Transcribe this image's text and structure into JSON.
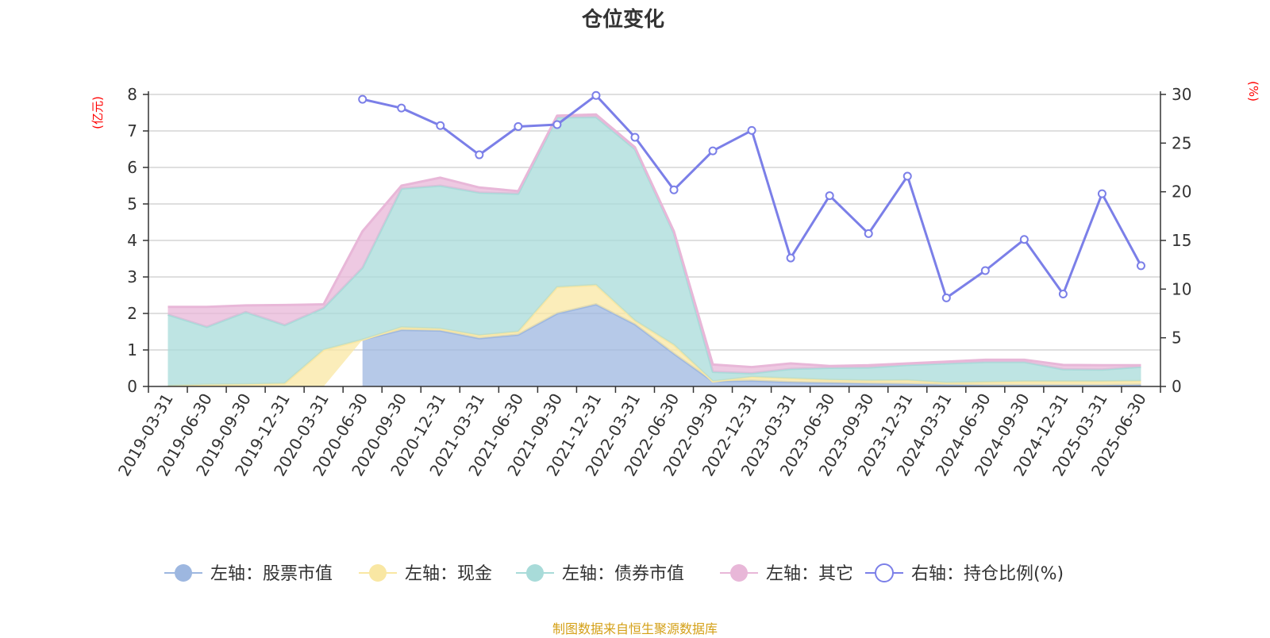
{
  "chart_data": {
    "type": "area",
    "title": "仓位变化",
    "left_axis_unit": "(亿元)",
    "right_axis_unit": "(%)",
    "categories": [
      "2019-03-31",
      "2019-06-30",
      "2019-09-30",
      "2019-12-31",
      "2020-03-31",
      "2020-06-30",
      "2020-09-30",
      "2020-12-31",
      "2021-03-31",
      "2021-06-30",
      "2021-09-30",
      "2021-12-31",
      "2022-03-31",
      "2022-06-30",
      "2022-09-30",
      "2022-12-31",
      "2023-03-31",
      "2023-06-30",
      "2023-09-30",
      "2023-12-31",
      "2024-03-31",
      "2024-06-30",
      "2024-09-30",
      "2024-12-31",
      "2025-03-31",
      "2025-06-30"
    ],
    "left_ylim": [
      0,
      8
    ],
    "left_yticks": [
      0,
      1,
      2,
      3,
      4,
      5,
      6,
      7,
      8
    ],
    "right_ylim": [
      0,
      30
    ],
    "right_yticks": [
      0,
      5,
      10,
      15,
      20,
      25,
      30
    ],
    "grid": true,
    "legend_position": "bottom",
    "series": [
      {
        "name": "左轴：股票市值",
        "axis": "left",
        "kind": "stacked-area",
        "color": "#9db7e0",
        "values": [
          null,
          null,
          null,
          null,
          null,
          1.28,
          1.55,
          1.53,
          1.32,
          1.42,
          2.0,
          2.25,
          1.7,
          0.9,
          0.14,
          0.16,
          0.12,
          0.1,
          0.08,
          0.07,
          0.05,
          0.04,
          0.04,
          0.04,
          0.04,
          0.05
        ]
      },
      {
        "name": "左轴：现金",
        "axis": "left",
        "kind": "stacked-area",
        "color": "#f9e7a3",
        "values": [
          0.02,
          0.05,
          0.06,
          0.08,
          1.0,
          0.0,
          0.07,
          0.05,
          0.08,
          0.08,
          0.72,
          0.53,
          0.1,
          0.24,
          0.0,
          0.1,
          0.1,
          0.08,
          0.08,
          0.1,
          0.05,
          0.08,
          0.1,
          0.1,
          0.1,
          0.1
        ]
      },
      {
        "name": "左轴：债券市值",
        "axis": "left",
        "kind": "stacked-area",
        "color": "#a8dbd9",
        "values": [
          1.95,
          1.58,
          1.98,
          1.6,
          1.15,
          1.97,
          3.8,
          3.92,
          3.91,
          3.78,
          4.65,
          4.6,
          4.7,
          3.06,
          0.26,
          0.1,
          0.26,
          0.33,
          0.36,
          0.42,
          0.53,
          0.55,
          0.53,
          0.33,
          0.32,
          0.39
        ]
      },
      {
        "name": "左轴：其它",
        "axis": "left",
        "kind": "stacked-area",
        "color": "#e8b7d8",
        "values": [
          0.21,
          0.55,
          0.18,
          0.55,
          0.1,
          1.0,
          0.08,
          0.22,
          0.14,
          0.07,
          0.05,
          0.07,
          0.05,
          0.05,
          0.2,
          0.17,
          0.15,
          0.05,
          0.06,
          0.04,
          0.05,
          0.06,
          0.06,
          0.12,
          0.12,
          0.04
        ]
      },
      {
        "name": "右轴：持仓比例(%)",
        "axis": "right",
        "kind": "line",
        "color": "#7b7fe8",
        "values": [
          null,
          null,
          null,
          null,
          null,
          29.5,
          28.6,
          26.8,
          23.8,
          26.7,
          26.9,
          29.9,
          25.6,
          20.2,
          24.2,
          26.3,
          13.2,
          19.6,
          15.7,
          21.6,
          9.1,
          11.9,
          15.1,
          9.5,
          19.8,
          12.4
        ]
      }
    ]
  },
  "footer": {
    "source": "制图数据来自恒生聚源数据库"
  }
}
